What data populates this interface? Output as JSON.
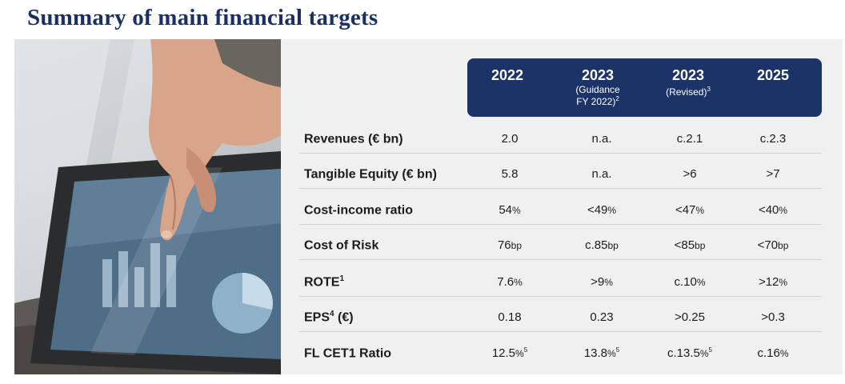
{
  "title": "Summary of main financial targets",
  "columns": [
    {
      "year": "2022",
      "sub": "",
      "sup": ""
    },
    {
      "year": "2023",
      "sub": "(Guidance FY 2022)",
      "sup": "2"
    },
    {
      "year": "2023",
      "sub": "(Revised)",
      "sup": "3"
    },
    {
      "year": "2025",
      "sub": "",
      "sup": ""
    }
  ],
  "rows": [
    {
      "label": "Revenues (€ bn)",
      "label_sup": "",
      "label_suffix": "",
      "cells": [
        {
          "v": "2.0",
          "u": "",
          "s": ""
        },
        {
          "v": "n.a.",
          "u": "",
          "s": ""
        },
        {
          "v": "c.2.1",
          "u": "",
          "s": ""
        },
        {
          "v": "c.2.3",
          "u": "",
          "s": ""
        }
      ]
    },
    {
      "label": "Tangible Equity  (€ bn)",
      "label_sup": "",
      "label_suffix": "",
      "cells": [
        {
          "v": "5.8",
          "u": "",
          "s": ""
        },
        {
          "v": "n.a.",
          "u": "",
          "s": ""
        },
        {
          "v": ">6",
          "u": "",
          "s": ""
        },
        {
          "v": ">7",
          "u": "",
          "s": ""
        }
      ]
    },
    {
      "label": "Cost-income ratio",
      "label_sup": "",
      "label_suffix": "",
      "cells": [
        {
          "v": "54",
          "u": "%",
          "s": ""
        },
        {
          "v": "<49",
          "u": "%",
          "s": ""
        },
        {
          "v": "<47",
          "u": "%",
          "s": ""
        },
        {
          "v": "<40",
          "u": "%",
          "s": ""
        }
      ]
    },
    {
      "label": "Cost of Risk",
      "label_sup": "",
      "label_suffix": "",
      "cells": [
        {
          "v": "76",
          "u": "bp",
          "s": ""
        },
        {
          "v": "c.85",
          "u": "bp",
          "s": ""
        },
        {
          "v": "<85",
          "u": "bp",
          "s": ""
        },
        {
          "v": "<70",
          "u": "bp",
          "s": ""
        }
      ]
    },
    {
      "label": "ROTE",
      "label_sup": "1",
      "label_suffix": "",
      "cells": [
        {
          "v": "7.6",
          "u": "%",
          "s": ""
        },
        {
          "v": ">9",
          "u": "%",
          "s": ""
        },
        {
          "v": "c.10",
          "u": "%",
          "s": ""
        },
        {
          "v": ">12",
          "u": "%",
          "s": ""
        }
      ]
    },
    {
      "label": "EPS",
      "label_sup": "4",
      "label_suffix": " (€)",
      "cells": [
        {
          "v": "0.18",
          "u": "",
          "s": ""
        },
        {
          "v": "0.23",
          "u": "",
          "s": ""
        },
        {
          "v": ">0.25",
          "u": "",
          "s": ""
        },
        {
          "v": ">0.3",
          "u": "",
          "s": ""
        }
      ]
    },
    {
      "label": "FL CET1 Ratio",
      "label_sup": "",
      "label_suffix": "",
      "cells": [
        {
          "v": "12.5",
          "u": "%",
          "s": "5"
        },
        {
          "v": "13.8",
          "u": "%",
          "s": "5"
        },
        {
          "v": "c.13.5",
          "u": "%",
          "s": "5"
        },
        {
          "v": "c.16",
          "u": "%",
          "s": ""
        }
      ]
    }
  ]
}
